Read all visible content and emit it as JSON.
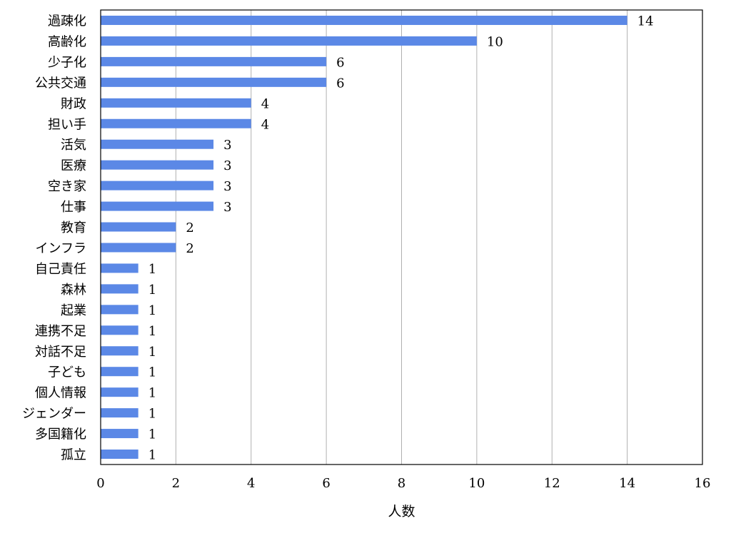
{
  "chart_data": {
    "type": "bar",
    "orientation": "horizontal",
    "categories": [
      "過疎化",
      "高齢化",
      "少子化",
      "公共交通",
      "財政",
      "担い手",
      "活気",
      "医療",
      "空き家",
      "仕事",
      "教育",
      "インフラ",
      "自己責任",
      "森林",
      "起業",
      "連携不足",
      "対話不足",
      "子ども",
      "個人情報",
      "ジェンダー",
      "多国籍化",
      "孤立"
    ],
    "values": [
      14,
      10,
      6,
      6,
      4,
      4,
      3,
      3,
      3,
      3,
      2,
      2,
      1,
      1,
      1,
      1,
      1,
      1,
      1,
      1,
      1,
      1
    ],
    "value_labels": [
      "14",
      "10",
      "6",
      "6",
      "4",
      "4",
      "3",
      "3",
      "3",
      "3",
      "2",
      "2",
      "1",
      "1",
      "1",
      "1",
      "1",
      "1",
      "1",
      "1",
      "1",
      "1"
    ],
    "xlabel": "人数",
    "ylabel": "",
    "title": "",
    "xlim": [
      0,
      16
    ],
    "xticks": [
      0,
      2,
      4,
      6,
      8,
      10,
      12,
      14,
      16
    ],
    "xtick_labels": [
      "0",
      "2",
      "4",
      "6",
      "8",
      "10",
      "12",
      "14",
      "16"
    ],
    "grid": "vertical",
    "legend": "none",
    "bar_color": "#5b88e6",
    "grid_color": "#b0b0b0"
  }
}
